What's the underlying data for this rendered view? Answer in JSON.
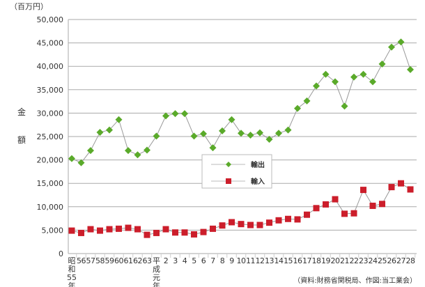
{
  "chart_data": {
    "type": "line",
    "unit": "（百万円）",
    "ylabel": "金額",
    "source": "（資料:財務省関税局、作図:当工業会）",
    "ylim": [
      0,
      50000
    ],
    "yticks": [
      "0",
      "5,000",
      "10,000",
      "15,000",
      "20,000",
      "25,000",
      "30,000",
      "35,000",
      "40,000",
      "45,000",
      "50,000"
    ],
    "grid": true,
    "legend_placement": "center",
    "categories": [
      "昭和55年",
      "56",
      "57",
      "58",
      "59",
      "60",
      "61",
      "62",
      "63",
      "平成元年",
      "2",
      "3",
      "4",
      "5",
      "6",
      "7",
      "8",
      "9",
      "10",
      "11",
      "12",
      "13",
      "14",
      "15",
      "16",
      "17",
      "18",
      "19",
      "20",
      "21",
      "22",
      "23",
      "24",
      "25",
      "26",
      "27",
      "28"
    ],
    "series": [
      {
        "name": "輸出",
        "color": "#5aaa2a",
        "marker": "diamond",
        "values": [
          20300,
          19400,
          22000,
          25900,
          26400,
          28600,
          22000,
          21100,
          22100,
          25100,
          29400,
          29900,
          29900,
          25100,
          25600,
          22600,
          26200,
          28600,
          25700,
          25300,
          25800,
          24400,
          25700,
          26400,
          31000,
          32600,
          35800,
          38300,
          36700,
          31500,
          37700,
          38300,
          36700,
          40500,
          44100,
          45200,
          39300
        ]
      },
      {
        "name": "輸入",
        "color": "#cc1e2b",
        "marker": "square",
        "values": [
          4900,
          4400,
          5200,
          4900,
          5200,
          5300,
          5500,
          5200,
          4000,
          4400,
          5200,
          4500,
          4500,
          4100,
          4600,
          5300,
          6000,
          6700,
          6300,
          6100,
          6100,
          6600,
          7100,
          7400,
          7300,
          8300,
          9700,
          10500,
          11600,
          8500,
          8600,
          13600,
          10200,
          10600,
          14200,
          15000,
          13700
        ]
      }
    ]
  }
}
